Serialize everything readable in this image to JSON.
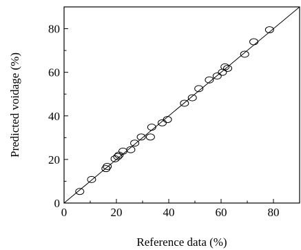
{
  "chart_data": {
    "type": "scatter",
    "title": "",
    "xlabel": "Reference data (%)",
    "ylabel": "Predicted voidage (%)",
    "xlim": [
      0,
      90
    ],
    "ylim": [
      0,
      90
    ],
    "x_ticks": [
      0,
      20,
      40,
      60,
      80
    ],
    "y_ticks": [
      0,
      20,
      40,
      60,
      80
    ],
    "grid": false,
    "legend": "none",
    "reference_line": {
      "from": [
        0,
        0
      ],
      "to": [
        90,
        90
      ]
    },
    "marker": "open-circle",
    "points": [
      [
        6,
        5.3
      ],
      [
        10.5,
        10.8
      ],
      [
        16,
        15.8
      ],
      [
        16.5,
        16.8
      ],
      [
        19.5,
        20.3
      ],
      [
        20.5,
        21.3
      ],
      [
        21,
        22
      ],
      [
        22.5,
        23.8
      ],
      [
        25.5,
        24.5
      ],
      [
        27,
        27.5
      ],
      [
        29.5,
        30.3
      ],
      [
        33,
        30.3
      ],
      [
        33.5,
        34.8
      ],
      [
        37.5,
        36.8
      ],
      [
        39.5,
        38.3
      ],
      [
        46,
        45.8
      ],
      [
        49,
        48.3
      ],
      [
        51.5,
        52.5
      ],
      [
        55.5,
        56.5
      ],
      [
        58.5,
        58.3
      ],
      [
        60.5,
        60
      ],
      [
        61.5,
        62.5
      ],
      [
        62.5,
        61.8
      ],
      [
        69,
        68.3
      ],
      [
        72.5,
        74
      ],
      [
        78.5,
        79.5
      ]
    ]
  }
}
